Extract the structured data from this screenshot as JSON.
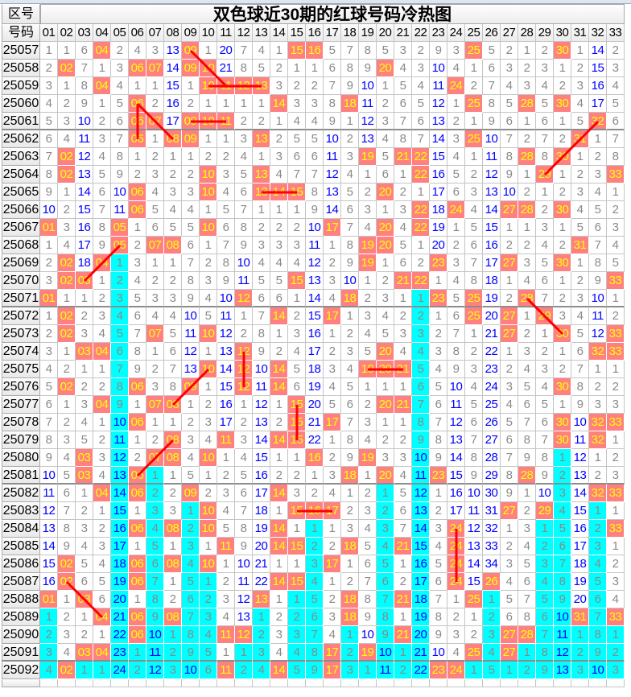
{
  "title": "双色球近30期的红球号码冷热图",
  "header": {
    "period_label": "区号",
    "number_label": "号码",
    "numbers": [
      "01",
      "02",
      "03",
      "04",
      "05",
      "06",
      "07",
      "08",
      "09",
      "10",
      "11",
      "12",
      "13",
      "14",
      "15",
      "16",
      "17",
      "18",
      "19",
      "20",
      "21",
      "22",
      "23",
      "24",
      "25",
      "26",
      "27",
      "28",
      "29",
      "30",
      "31",
      "32",
      "33"
    ]
  },
  "colors": {
    "hit_bg": "#ff8080",
    "hit_text": "#ffff00",
    "current_omission_bg": "#00ffff",
    "omission_text": "#8a8a8a",
    "omission_10plus_text": "#0000ff",
    "pattern_line": "#ff0000"
  },
  "rows": [
    {
      "period": "25057",
      "cells": [
        1,
        1,
        6,
        "04",
        2,
        4,
        3,
        13,
        "09",
        1,
        20,
        7,
        4,
        1,
        "15",
        "16",
        5,
        7,
        8,
        5,
        3,
        2,
        9,
        3,
        "25",
        5,
        2,
        1,
        2,
        "30",
        1,
        14,
        2
      ]
    },
    {
      "period": "25058",
      "cells": [
        2,
        "02",
        7,
        1,
        3,
        "06",
        "07",
        14,
        "09",
        "10",
        21,
        8,
        5,
        2,
        1,
        1,
        6,
        8,
        9,
        "20",
        4,
        3,
        10,
        4,
        1,
        6,
        3,
        2,
        3,
        1,
        2,
        15,
        3
      ]
    },
    {
      "period": "25059",
      "cells": [
        3,
        1,
        8,
        "04",
        4,
        1,
        1,
        15,
        1,
        "10",
        "11",
        "12",
        "13",
        3,
        2,
        2,
        7,
        9,
        10,
        1,
        5,
        4,
        11,
        "24",
        2,
        7,
        4,
        3,
        4,
        2,
        3,
        16,
        4
      ]
    },
    {
      "period": "25060",
      "cells": [
        4,
        2,
        9,
        1,
        5,
        "06",
        2,
        16,
        2,
        1,
        1,
        1,
        1,
        "14",
        3,
        3,
        8,
        "18",
        11,
        2,
        6,
        5,
        12,
        1,
        "25",
        8,
        5,
        "28",
        5,
        "30",
        4,
        17,
        5
      ]
    },
    {
      "period": "25061",
      "cells": [
        5,
        3,
        10,
        2,
        6,
        "06",
        "07",
        17,
        "09",
        "10",
        "11",
        2,
        2,
        1,
        4,
        4,
        9,
        1,
        12,
        3,
        7,
        6,
        13,
        2,
        1,
        9,
        6,
        1,
        6,
        1,
        5,
        "32",
        6
      ]
    },
    {
      "period": "25062",
      "cells": [
        6,
        4,
        11,
        3,
        7,
        "06",
        1,
        "08",
        "09",
        1,
        1,
        3,
        "13",
        2,
        5,
        5,
        10,
        2,
        13,
        4,
        8,
        7,
        14,
        3,
        "25",
        10,
        7,
        2,
        7,
        2,
        "31",
        1,
        7
      ]
    },
    {
      "period": "25063",
      "cells": [
        7,
        "02",
        12,
        4,
        8,
        1,
        2,
        1,
        1,
        2,
        2,
        4,
        1,
        3,
        6,
        6,
        11,
        3,
        "19",
        5,
        "21",
        "22",
        15,
        4,
        1,
        11,
        8,
        "28",
        8,
        "30",
        1,
        2,
        8
      ]
    },
    {
      "period": "25064",
      "cells": [
        8,
        "02",
        13,
        5,
        9,
        2,
        3,
        2,
        2,
        "10",
        3,
        5,
        "13",
        4,
        7,
        7,
        12,
        4,
        1,
        6,
        1,
        "22",
        16,
        5,
        2,
        12,
        9,
        1,
        "29",
        1,
        2,
        3,
        "33"
      ]
    },
    {
      "period": "25065",
      "cells": [
        9,
        1,
        14,
        6,
        10,
        "06",
        4,
        3,
        3,
        "10",
        4,
        6,
        "13",
        "14",
        "15",
        8,
        13,
        5,
        2,
        "20",
        2,
        1,
        17,
        6,
        3,
        13,
        10,
        2,
        1,
        2,
        3,
        4,
        1
      ]
    },
    {
      "period": "25066",
      "cells": [
        10,
        2,
        15,
        7,
        11,
        "06",
        5,
        4,
        4,
        1,
        5,
        7,
        1,
        1,
        1,
        9,
        14,
        6,
        3,
        1,
        3,
        "22",
        18,
        "24",
        4,
        14,
        "27",
        "28",
        2,
        "30",
        4,
        5,
        2
      ]
    },
    {
      "period": "25067",
      "cells": [
        "01",
        3,
        16,
        8,
        "05",
        1,
        6,
        5,
        5,
        "10",
        6,
        8,
        2,
        2,
        2,
        10,
        "17",
        7,
        4,
        "20",
        4,
        "22",
        19,
        1,
        5,
        15,
        1,
        1,
        3,
        1,
        5,
        6,
        3
      ]
    },
    {
      "period": "25068",
      "cells": [
        1,
        4,
        17,
        9,
        "05",
        2,
        "07",
        "08",
        6,
        1,
        7,
        9,
        3,
        3,
        3,
        11,
        1,
        8,
        "19",
        "20",
        5,
        1,
        20,
        2,
        6,
        16,
        2,
        2,
        4,
        2,
        "31",
        7,
        4
      ]
    },
    {
      "period": "25069",
      "cells": [
        2,
        "02",
        18,
        "04",
        1,
        3,
        1,
        1,
        7,
        2,
        8,
        10,
        4,
        4,
        4,
        12,
        2,
        9,
        "19",
        1,
        6,
        2,
        "23",
        3,
        7,
        17,
        "27",
        3,
        5,
        "30",
        1,
        8,
        5
      ]
    },
    {
      "period": "25070",
      "cells": [
        3,
        "02",
        "03",
        1,
        2,
        4,
        2,
        2,
        8,
        3,
        9,
        11,
        5,
        5,
        "15",
        13,
        3,
        10,
        1,
        2,
        "21",
        "22",
        1,
        4,
        8,
        18,
        1,
        4,
        6,
        1,
        2,
        9,
        "33"
      ]
    },
    {
      "period": "25071",
      "cells": [
        "01",
        1,
        1,
        2,
        3,
        5,
        3,
        3,
        9,
        4,
        10,
        "12",
        6,
        6,
        1,
        14,
        4,
        "18",
        2,
        3,
        1,
        1,
        "23",
        5,
        "25",
        19,
        2,
        "28",
        7,
        2,
        3,
        10,
        1
      ]
    },
    {
      "period": "25072",
      "cells": [
        1,
        "02",
        2,
        3,
        4,
        6,
        4,
        4,
        10,
        5,
        11,
        1,
        7,
        "14",
        2,
        15,
        "17",
        1,
        3,
        4,
        2,
        2,
        1,
        6,
        "25",
        20,
        "27",
        1,
        "29",
        3,
        4,
        11,
        2
      ]
    },
    {
      "period": "25073",
      "cells": [
        2,
        "02",
        3,
        4,
        5,
        7,
        "07",
        5,
        11,
        "10",
        12,
        2,
        8,
        1,
        3,
        16,
        1,
        2,
        4,
        5,
        3,
        3,
        2,
        7,
        1,
        21,
        "27",
        2,
        1,
        "30",
        5,
        12,
        "33"
      ]
    },
    {
      "period": "25074",
      "cells": [
        3,
        1,
        "03",
        "04",
        6,
        8,
        1,
        6,
        12,
        1,
        13,
        "12",
        9,
        2,
        4,
        17,
        2,
        3,
        5,
        "20",
        4,
        4,
        3,
        8,
        2,
        22,
        1,
        3,
        2,
        1,
        6,
        "32",
        "33"
      ]
    },
    {
      "period": "25075",
      "cells": [
        4,
        2,
        1,
        1,
        7,
        9,
        2,
        7,
        13,
        "10",
        14,
        "12",
        10,
        "14",
        5,
        18,
        3,
        4,
        "19",
        "20",
        "21",
        5,
        4,
        9,
        3,
        23,
        2,
        4,
        3,
        2,
        7,
        1,
        1
      ]
    },
    {
      "period": "25076",
      "cells": [
        5,
        "02",
        2,
        2,
        8,
        "06",
        3,
        8,
        "09",
        1,
        15,
        "12",
        11,
        "14",
        6,
        19,
        4,
        5,
        1,
        1,
        1,
        6,
        5,
        10,
        4,
        24,
        3,
        5,
        4,
        "30",
        8,
        2,
        2
      ]
    },
    {
      "period": "25077",
      "cells": [
        6,
        1,
        3,
        "04",
        9,
        1,
        "07",
        "08",
        1,
        2,
        16,
        1,
        12,
        1,
        "15",
        20,
        5,
        6,
        2,
        "20",
        "21",
        7,
        6,
        11,
        5,
        25,
        4,
        6,
        5,
        1,
        9,
        3,
        3
      ]
    },
    {
      "period": "25078",
      "cells": [
        7,
        2,
        4,
        1,
        10,
        "06",
        1,
        1,
        2,
        3,
        17,
        2,
        13,
        2,
        "15",
        21,
        "17",
        7,
        3,
        1,
        1,
        8,
        7,
        12,
        6,
        26,
        5,
        7,
        6,
        "30",
        10,
        "32",
        "33"
      ]
    },
    {
      "period": "25079",
      "cells": [
        8,
        3,
        5,
        2,
        11,
        1,
        2,
        "08",
        3,
        4,
        "11",
        3,
        14,
        "14",
        "15",
        22,
        1,
        8,
        4,
        2,
        2,
        9,
        8,
        13,
        7,
        27,
        6,
        8,
        7,
        "30",
        11,
        "32",
        1
      ]
    },
    {
      "period": "25080",
      "cells": [
        9,
        4,
        "03",
        3,
        12,
        2,
        "07",
        "08",
        4,
        "10",
        1,
        4,
        15,
        1,
        1,
        "16",
        2,
        9,
        "19",
        3,
        3,
        10,
        9,
        14,
        8,
        28,
        7,
        9,
        8,
        1,
        12,
        1,
        2
      ]
    },
    {
      "period": "25081",
      "cells": [
        10,
        5,
        "03",
        4,
        13,
        "06",
        1,
        1,
        5,
        1,
        2,
        5,
        16,
        2,
        2,
        1,
        3,
        "18",
        1,
        "20",
        4,
        11,
        "23",
        15,
        9,
        29,
        8,
        "28",
        9,
        2,
        13,
        2,
        3
      ]
    },
    {
      "period": "25082",
      "cells": [
        11,
        6,
        1,
        "04",
        14,
        "06",
        2,
        2,
        "09",
        2,
        3,
        6,
        17,
        "14",
        3,
        2,
        4,
        1,
        2,
        1,
        5,
        12,
        1,
        16,
        10,
        30,
        9,
        1,
        10,
        3,
        14,
        "32",
        "33"
      ]
    },
    {
      "period": "25083",
      "cells": [
        12,
        7,
        2,
        1,
        15,
        1,
        3,
        3,
        1,
        "10",
        4,
        7,
        18,
        1,
        "15",
        "16",
        "17",
        2,
        3,
        2,
        6,
        13,
        2,
        17,
        11,
        31,
        "27",
        2,
        "29",
        4,
        15,
        1,
        1
      ]
    },
    {
      "period": "25084",
      "cells": [
        13,
        8,
        3,
        2,
        16,
        "06",
        4,
        "08",
        2,
        "10",
        5,
        8,
        19,
        "14",
        1,
        1,
        1,
        3,
        4,
        3,
        7,
        14,
        3,
        "24",
        12,
        32,
        1,
        3,
        1,
        5,
        16,
        2,
        "33"
      ]
    },
    {
      "period": "25085",
      "cells": [
        14,
        9,
        4,
        3,
        17,
        1,
        5,
        1,
        3,
        1,
        "11",
        9,
        20,
        "14",
        "15",
        2,
        2,
        "18",
        5,
        4,
        "21",
        15,
        4,
        "24",
        13,
        33,
        2,
        4,
        2,
        6,
        17,
        3,
        1
      ]
    },
    {
      "period": "25086",
      "cells": [
        15,
        "02",
        5,
        4,
        18,
        "06",
        6,
        "08",
        4,
        "10",
        1,
        10,
        21,
        1,
        1,
        3,
        "17",
        1,
        6,
        5,
        1,
        16,
        5,
        "24",
        14,
        34,
        3,
        5,
        3,
        7,
        18,
        4,
        2
      ]
    },
    {
      "period": "25087",
      "cells": [
        16,
        "02",
        6,
        5,
        19,
        "06",
        7,
        1,
        5,
        1,
        2,
        11,
        22,
        "14",
        "15",
        4,
        1,
        2,
        7,
        6,
        2,
        17,
        6,
        "24",
        15,
        "26",
        4,
        6,
        4,
        8,
        19,
        5,
        3
      ]
    },
    {
      "period": "25088",
      "cells": [
        "01",
        1,
        "03",
        6,
        20,
        1,
        8,
        2,
        6,
        2,
        3,
        12,
        "13",
        1,
        1,
        5,
        2,
        "18",
        8,
        7,
        "21",
        18,
        7,
        1,
        "25",
        1,
        5,
        7,
        5,
        9,
        20,
        6,
        4
      ]
    },
    {
      "period": "25089",
      "cells": [
        1,
        2,
        1,
        "04",
        21,
        "06",
        9,
        "08",
        7,
        3,
        4,
        13,
        1,
        2,
        2,
        6,
        3,
        "18",
        9,
        8,
        1,
        19,
        8,
        2,
        1,
        2,
        6,
        8,
        6,
        10,
        "31",
        7,
        "33"
      ]
    },
    {
      "period": "25090",
      "cells": [
        2,
        3,
        2,
        1,
        22,
        "06",
        10,
        1,
        8,
        4,
        "11",
        "12",
        2,
        3,
        3,
        7,
        4,
        1,
        10,
        9,
        "21",
        20,
        9,
        3,
        2,
        3,
        "27",
        "28",
        7,
        11,
        1,
        8,
        1
      ]
    },
    {
      "period": "25091",
      "cells": [
        3,
        4,
        "03",
        "04",
        23,
        1,
        11,
        2,
        9,
        5,
        1,
        1,
        3,
        4,
        4,
        8,
        "17",
        2,
        "19",
        10,
        1,
        21,
        10,
        4,
        "25",
        4,
        "27",
        1,
        8,
        12,
        2,
        9,
        2
      ]
    },
    {
      "period": "25092",
      "cells": [
        4,
        "02",
        1,
        1,
        24,
        2,
        12,
        3,
        10,
        6,
        "11",
        2,
        4,
        "14",
        5,
        9,
        "17",
        3,
        1,
        11,
        2,
        22,
        "23",
        "24",
        1,
        5,
        1,
        2,
        9,
        13,
        3,
        10,
        3
      ]
    }
  ]
}
